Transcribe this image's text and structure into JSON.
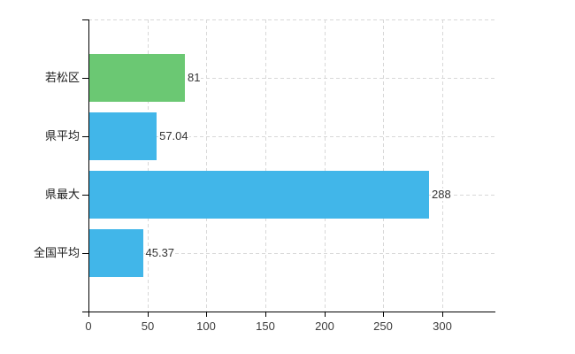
{
  "chart_data": {
    "type": "bar",
    "orientation": "horizontal",
    "title": "",
    "xlabel": "",
    "ylabel": "",
    "categories": [
      "若松区",
      "県平均",
      "県最大",
      "全国平均"
    ],
    "values": [
      81,
      57.04,
      288,
      45.37
    ],
    "value_labels": [
      "81",
      "57.04",
      "288",
      "45.37"
    ],
    "bar_colors": [
      "#6bc873",
      "#41b6e9",
      "#41b6e9",
      "#41b6e9"
    ],
    "xlim": [
      0,
      345
    ],
    "x_ticks": [
      0,
      50,
      100,
      150,
      200,
      250,
      300
    ],
    "x_tick_labels": [
      "0",
      "50",
      "100",
      "150",
      "200",
      "250",
      "300"
    ],
    "grid": true,
    "legend": "none",
    "colors": {
      "background": "#ffffff",
      "axis": "#000000",
      "gridline": "#d8d8d8",
      "tick_label": "#3c3c3c",
      "category_label": "#1a1a1a",
      "value_label": "#333333",
      "highlight_bar": "#6bc873",
      "default_bar": "#41b6e9"
    }
  }
}
